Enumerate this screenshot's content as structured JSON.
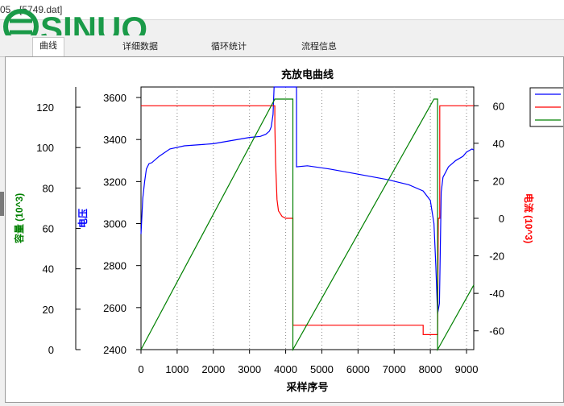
{
  "window": {
    "title": "05 - [5749.dat]"
  },
  "logo": {
    "text": "SINUO",
    "color": "#1a9a48"
  },
  "tabs": [
    {
      "label": "曲线",
      "active": true
    },
    {
      "label": "详细数据",
      "active": false
    },
    {
      "label": "循环统计",
      "active": false
    },
    {
      "label": "流程信息",
      "active": false
    }
  ],
  "chart_data": {
    "type": "line",
    "title": "充放电曲线",
    "xlabel": "采样序号",
    "xlim": [
      0,
      9200
    ],
    "x_ticks": [
      0,
      1000,
      2000,
      3000,
      4000,
      5000,
      6000,
      7000,
      8000,
      9000
    ],
    "grid": "vertical dotted",
    "axes": {
      "capacity": {
        "label": "容量 (10^3)",
        "color": "#008000",
        "range": [
          0,
          130
        ],
        "ticks": [
          0,
          20,
          40,
          60,
          80,
          100,
          120
        ]
      },
      "voltage": {
        "label": "电压",
        "color": "#0000ff",
        "range": [
          2400,
          3650
        ],
        "ticks": [
          2400,
          2600,
          2800,
          3000,
          3200,
          3400,
          3600
        ]
      },
      "current": {
        "label": "电流 (10^3)",
        "color": "#ff0000",
        "range": [
          -70,
          70
        ],
        "ticks": [
          -60,
          -40,
          -20,
          0,
          20,
          40,
          60
        ]
      }
    },
    "legend": {
      "position": "right",
      "colors": [
        "#0000ff",
        "#ff0000",
        "#008000"
      ]
    },
    "series": [
      {
        "axis": "voltage",
        "color": "#0000ff",
        "points": [
          [
            0,
            2950
          ],
          [
            50,
            3120
          ],
          [
            100,
            3200
          ],
          [
            150,
            3260
          ],
          [
            220,
            3285
          ],
          [
            300,
            3290
          ],
          [
            500,
            3320
          ],
          [
            800,
            3355
          ],
          [
            1200,
            3370
          ],
          [
            2000,
            3380
          ],
          [
            2500,
            3395
          ],
          [
            3000,
            3410
          ],
          [
            3300,
            3415
          ],
          [
            3450,
            3425
          ],
          [
            3550,
            3440
          ],
          [
            3600,
            3460
          ],
          [
            3650,
            3520
          ],
          [
            3680,
            3650
          ],
          [
            4300,
            3650
          ],
          [
            4300,
            3270
          ],
          [
            4600,
            3275
          ],
          [
            5200,
            3260
          ],
          [
            6000,
            3235
          ],
          [
            6800,
            3210
          ],
          [
            7400,
            3185
          ],
          [
            7800,
            3155
          ],
          [
            8000,
            3110
          ],
          [
            8100,
            3000
          ],
          [
            8150,
            2800
          ],
          [
            8200,
            2570
          ],
          [
            8250,
            2620
          ],
          [
            8300,
            3150
          ],
          [
            8350,
            3220
          ],
          [
            8500,
            3270
          ],
          [
            8700,
            3300
          ],
          [
            8900,
            3320
          ],
          [
            9000,
            3340
          ],
          [
            9150,
            3355
          ],
          [
            9200,
            3350
          ]
        ]
      },
      {
        "axis": "current",
        "color": "#ff0000",
        "points": [
          [
            0,
            60
          ],
          [
            3700,
            60
          ],
          [
            3700,
            50
          ],
          [
            3720,
            30
          ],
          [
            3760,
            10
          ],
          [
            3800,
            4
          ],
          [
            3900,
            1
          ],
          [
            4000,
            0
          ],
          [
            4200,
            0
          ],
          [
            4200,
            -57
          ],
          [
            7800,
            -57
          ],
          [
            7800,
            -62
          ],
          [
            8200,
            -62
          ],
          [
            8220,
            0
          ],
          [
            8260,
            0
          ],
          [
            8260,
            60
          ],
          [
            9200,
            60
          ]
        ]
      },
      {
        "axis": "capacity",
        "color": "#008000",
        "points": [
          [
            0,
            0
          ],
          [
            3700,
            124
          ],
          [
            4200,
            124
          ],
          [
            4200,
            0
          ],
          [
            8100,
            124
          ],
          [
            8200,
            124
          ],
          [
            8200,
            0
          ],
          [
            9200,
            32
          ]
        ]
      }
    ]
  }
}
